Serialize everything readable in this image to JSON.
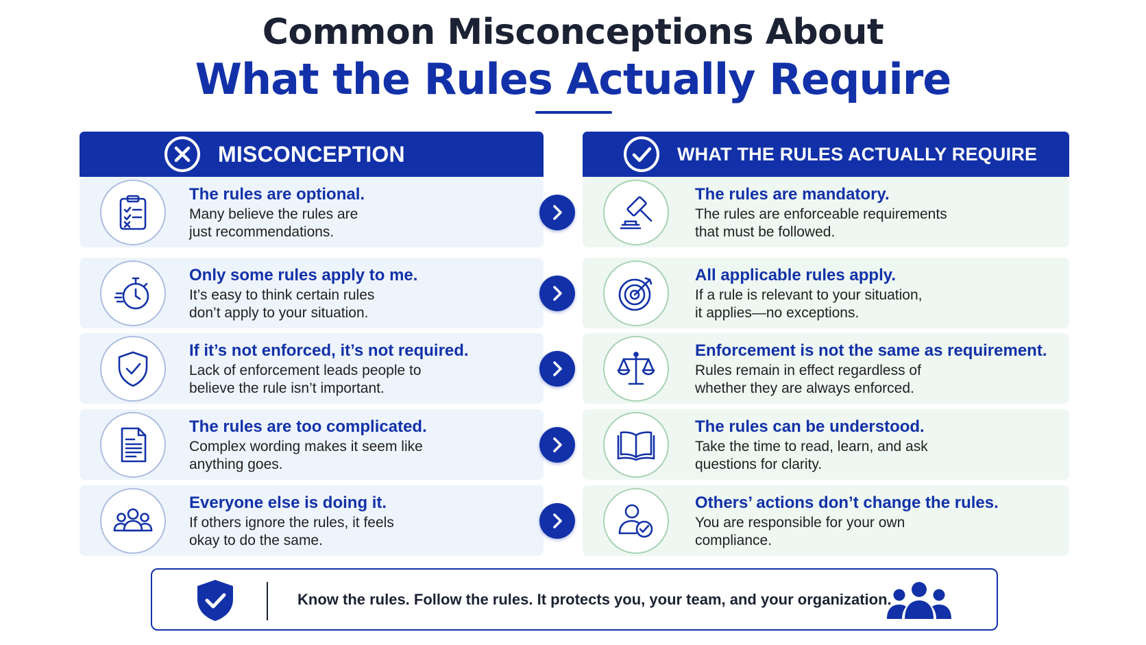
{
  "title": {
    "line1": "Common Misconceptions About",
    "line2": "What the Rules Actually Require"
  },
  "columns": {
    "misconception": {
      "label": "MISCONCEPTION",
      "icon": "x-circle-icon"
    },
    "requirement": {
      "label": "WHAT THE RULES ACTUALLY REQUIRE",
      "icon": "check-circle-icon"
    }
  },
  "rows": [
    {
      "misconception": {
        "icon": "clipboard-checklist-icon",
        "title": "The rules are optional.",
        "line1": "Many believe the rules are",
        "line2": "just recommendations."
      },
      "requirement": {
        "icon": "gavel-icon",
        "title": "The rules are mandatory.",
        "line1": "The rules are enforceable requirements",
        "line2": "that must be followed."
      }
    },
    {
      "misconception": {
        "icon": "stopwatch-icon",
        "title": "Only some rules apply to me.",
        "line1": "It’s easy to think certain rules",
        "line2": "don’t apply to your situation."
      },
      "requirement": {
        "icon": "target-icon",
        "title": "All applicable rules apply.",
        "line1": "If a rule is relevant to your situation,",
        "line2": "it applies—no exceptions."
      }
    },
    {
      "misconception": {
        "icon": "shield-check-icon",
        "title": "If it’s not enforced, it’s not required.",
        "line1": "Lack of enforcement leads people to",
        "line2": "believe the rule isn’t important."
      },
      "requirement": {
        "icon": "scales-icon",
        "title": "Enforcement is not the same as requirement.",
        "line1": "Rules remain in effect regardless of",
        "line2": "whether they are always enforced."
      }
    },
    {
      "misconception": {
        "icon": "document-icon",
        "title": "The rules are too complicated.",
        "line1": "Complex wording makes it seem like",
        "line2": "anything goes."
      },
      "requirement": {
        "icon": "open-book-icon",
        "title": "The rules can be understood.",
        "line1": "Take the time to read, learn, and ask",
        "line2": "questions for clarity."
      }
    },
    {
      "misconception": {
        "icon": "group-icon",
        "title": "Everyone else is doing it.",
        "line1": "If others ignore the rules, it feels",
        "line2": "okay to do the same."
      },
      "requirement": {
        "icon": "user-check-icon",
        "title": "Others’ actions don’t change the rules.",
        "line1": "You are responsible for your own",
        "line2": "compliance."
      }
    }
  ],
  "footer": {
    "text": "Know the rules. Follow the rules. It protects you, your team, and your organization.",
    "left_icon": "shield-check-icon",
    "right_icon": "team-icon"
  },
  "colors": {
    "primary_blue": "#1231a8",
    "dark_text": "#1b2233",
    "misconception_card_bg": "#eef4fc",
    "requirement_card_bg": "#eef7f1",
    "misconception_circle_border": "#aebee0",
    "requirement_circle_border": "#a9d3b4"
  }
}
